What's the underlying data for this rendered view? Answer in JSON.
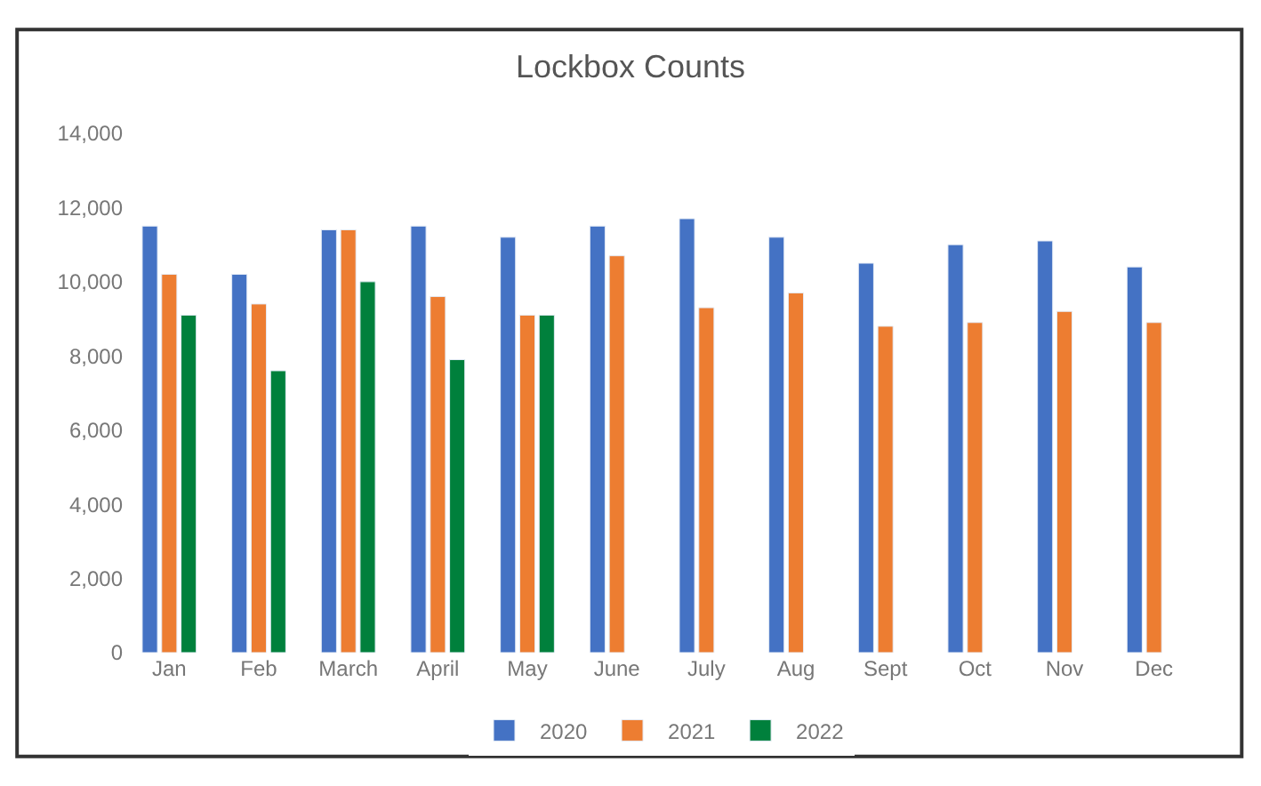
{
  "chart_data": {
    "type": "bar",
    "title": "Lockbox Counts",
    "categories": [
      "Jan",
      "Feb",
      "March",
      "April",
      "May",
      "June",
      "July",
      "Aug",
      "Sept",
      "Oct",
      "Nov",
      "Dec"
    ],
    "series": [
      {
        "name": "2020",
        "color": "#4472c4",
        "values": [
          11500,
          10200,
          11400,
          11500,
          11200,
          11500,
          11700,
          11200,
          10500,
          11000,
          11100,
          10400
        ]
      },
      {
        "name": "2021",
        "color": "#ed7d31",
        "values": [
          10200,
          9400,
          11400,
          9600,
          9100,
          10700,
          9300,
          9700,
          8800,
          8900,
          9200,
          8900
        ]
      },
      {
        "name": "2022",
        "color": "#00803c",
        "values": [
          9100,
          7600,
          10000,
          7900,
          9100,
          null,
          null,
          null,
          null,
          null,
          null,
          null
        ]
      }
    ],
    "ylim": [
      0,
      14000
    ],
    "yticks": [
      {
        "value": 0,
        "label": "0"
      },
      {
        "value": 2000,
        "label": "2,000"
      },
      {
        "value": 4000,
        "label": "4,000"
      },
      {
        "value": 6000,
        "label": "6,000"
      },
      {
        "value": 8000,
        "label": "8,000"
      },
      {
        "value": 10000,
        "label": "10,000"
      },
      {
        "value": 12000,
        "label": "12,000"
      },
      {
        "value": 14000,
        "label": "14,000"
      }
    ],
    "legend": "bottom"
  }
}
